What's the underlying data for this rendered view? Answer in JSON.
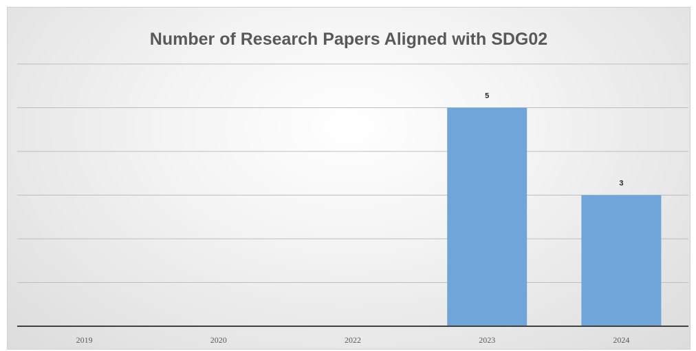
{
  "chart_data": {
    "type": "bar",
    "title": "Number of Research Papers Aligned with SDG02",
    "categories": [
      "2019",
      "2020",
      "2022",
      "2023",
      "2024"
    ],
    "values": [
      0,
      0,
      0,
      5,
      3
    ],
    "data_labels": [
      "",
      "",
      "",
      "5",
      "3"
    ],
    "xlabel": "",
    "ylabel": "",
    "ylim": [
      0,
      6
    ],
    "grid": true,
    "legend": "none",
    "bar_color": "#6fa5d8"
  }
}
